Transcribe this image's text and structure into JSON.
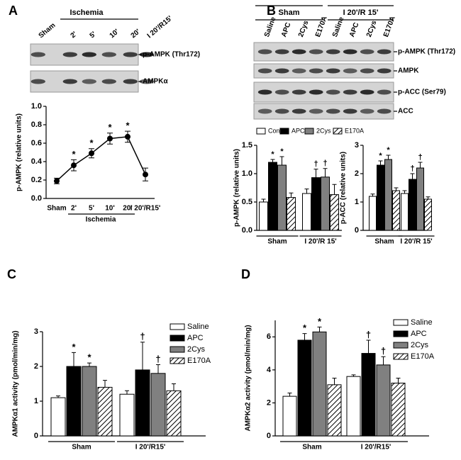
{
  "chart_data": [
    {
      "type": "line",
      "panel": "A",
      "blot": {
        "group_label": "Ischemia",
        "lanes": [
          "Sham",
          "2'",
          "5'",
          "10'",
          "20'",
          "I 20'/R15'"
        ],
        "rows": [
          "p-AMPK (Thr172)",
          "AMPKα"
        ]
      },
      "ylabel": "p-AMPK (relative units)",
      "group_label": "Ischemia",
      "categories": [
        "Sham",
        "2'",
        "5'",
        "10'",
        "20'",
        "I 20'/R15'"
      ],
      "values": [
        0.19,
        0.36,
        0.49,
        0.65,
        0.67,
        0.26
      ],
      "errors": [
        0.03,
        0.06,
        0.05,
        0.06,
        0.06,
        0.07
      ],
      "markers": [
        null,
        "*",
        "*",
        "*",
        "*",
        null
      ],
      "color": "#000000",
      "ylim": [
        0,
        1.0
      ],
      "yticks": [
        {
          "value": 0,
          "label": "0.0"
        },
        0.2,
        0.4,
        0.6,
        0.8,
        {
          "value": 1.0,
          "label": "1.0"
        }
      ]
    },
    {
      "type": "blot",
      "panel": "B",
      "groups": [
        "Sham",
        "I 20'/R 15'"
      ],
      "lanes": [
        "Saline",
        "APC",
        "2Cys",
        "E170A",
        "Saline",
        "APC",
        "2Cys",
        "E170A"
      ],
      "rows": [
        "p-AMPK (Thr172)",
        "AMPK",
        "p-ACC (Ser79)",
        "ACC"
      ]
    },
    {
      "type": "bar",
      "ylabel": "p-AMPK (relative units)",
      "categories": [
        "Sham",
        "I 20'/R 15'"
      ],
      "legend": true,
      "ylim": [
        0,
        1.5
      ],
      "yticks": [
        {
          "value": 0,
          "label": "0.0"
        },
        0.5,
        {
          "value": 1.0,
          "label": "1.0"
        },
        1.5
      ],
      "series": [
        {
          "name": "Con",
          "color": "#ffffff",
          "values": [
            0.5,
            0.65
          ],
          "errors": [
            0.05,
            0.08
          ],
          "markers": [
            null,
            null
          ]
        },
        {
          "name": "APC",
          "color": "#000000",
          "values": [
            1.2,
            0.93
          ],
          "errors": [
            0.05,
            0.15
          ],
          "markers": [
            "*",
            "†"
          ]
        },
        {
          "name": "2Cys",
          "color": "#808080",
          "values": [
            1.15,
            0.94
          ],
          "errors": [
            0.15,
            0.15
          ],
          "markers": [
            "*",
            "†"
          ]
        },
        {
          "name": "E170A",
          "color": "#ffffff",
          "hatch": true,
          "values": [
            0.58,
            0.63
          ],
          "errors": [
            0.08,
            0.18
          ],
          "markers": [
            null,
            null
          ]
        }
      ]
    },
    {
      "type": "bar",
      "ylabel": "p-ACC (relative units)",
      "categories": [
        "Sham",
        "I 20'/R 15'"
      ],
      "legend": false,
      "ylim": [
        0,
        3
      ],
      "yticks": [
        0,
        1,
        2,
        3
      ],
      "series": [
        {
          "color": "#ffffff",
          "values": [
            1.2,
            1.3
          ],
          "errors": [
            0.08,
            0.1
          ],
          "markers": [
            null,
            null
          ]
        },
        {
          "color": "#000000",
          "values": [
            2.3,
            1.8
          ],
          "errors": [
            0.15,
            0.2
          ],
          "markers": [
            "*",
            "†"
          ]
        },
        {
          "color": "#808080",
          "values": [
            2.5,
            2.2
          ],
          "errors": [
            0.15,
            0.2
          ],
          "markers": [
            "*",
            "†"
          ]
        },
        {
          "color": "#ffffff",
          "hatch": true,
          "values": [
            1.4,
            1.1
          ],
          "errors": [
            0.1,
            0.08
          ],
          "markers": [
            null,
            null
          ]
        }
      ]
    },
    {
      "type": "bar",
      "panel": "C",
      "ylabel": "AMPKα1 activity (pmol/min/mg)",
      "categories": [
        "Sham",
        "I 20'/R15'"
      ],
      "legend": true,
      "ylim": [
        0,
        3
      ],
      "yticks": [
        0,
        1,
        2,
        3
      ],
      "series": [
        {
          "name": "Saline",
          "color": "#ffffff",
          "values": [
            1.1,
            1.2
          ],
          "errors": [
            0.05,
            0.1
          ],
          "markers": [
            null,
            null
          ]
        },
        {
          "name": "APC",
          "color": "#000000",
          "values": [
            2.0,
            1.9
          ],
          "errors": [
            0.4,
            0.8
          ],
          "markers": [
            "*",
            "†"
          ]
        },
        {
          "name": "2Cys",
          "color": "#808080",
          "values": [
            2.0,
            1.8
          ],
          "errors": [
            0.1,
            0.25
          ],
          "markers": [
            "*",
            "†"
          ]
        },
        {
          "name": "E170A",
          "color": "#ffffff",
          "hatch": true,
          "values": [
            1.4,
            1.3
          ],
          "errors": [
            0.2,
            0.2
          ],
          "markers": [
            null,
            null
          ]
        }
      ]
    },
    {
      "type": "bar",
      "panel": "D",
      "ylabel": "AMPKα2 activity (pmol/min/mg)",
      "categories": [
        "Sham",
        "I 20'/R15'"
      ],
      "legend": true,
      "ylim": [
        0,
        7
      ],
      "yticks": [
        0,
        2,
        4,
        6
      ],
      "series": [
        {
          "name": "Saline",
          "color": "#ffffff",
          "values": [
            2.4,
            3.6
          ],
          "errors": [
            0.2,
            0.1
          ],
          "markers": [
            null,
            null
          ]
        },
        {
          "name": "APC",
          "color": "#000000",
          "values": [
            5.8,
            5.0
          ],
          "errors": [
            0.4,
            0.8
          ],
          "markers": [
            "*",
            "†"
          ]
        },
        {
          "name": "2Cys",
          "color": "#808080",
          "values": [
            6.3,
            4.3
          ],
          "errors": [
            0.3,
            0.5
          ],
          "markers": [
            "*",
            "†"
          ]
        },
        {
          "name": "E170A",
          "color": "#ffffff",
          "hatch": true,
          "values": [
            3.1,
            3.2
          ],
          "errors": [
            0.4,
            0.3
          ],
          "markers": [
            null,
            null
          ]
        }
      ]
    }
  ]
}
